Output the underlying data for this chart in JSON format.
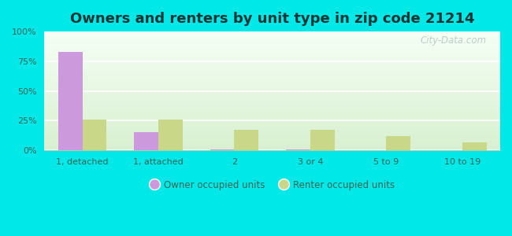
{
  "title": "Owners and renters by unit type in zip code 21214",
  "categories": [
    "1, detached",
    "1, attached",
    "2",
    "3 or 4",
    "5 to 9",
    "10 to 19"
  ],
  "owner_values": [
    83,
    15,
    1,
    1,
    0,
    0
  ],
  "renter_values": [
    26,
    26,
    17,
    17,
    12,
    7
  ],
  "owner_color": "#cc99dd",
  "renter_color": "#c8d888",
  "background_color": "#00e8e8",
  "title_fontsize": 13,
  "title_color": "#1a3333",
  "legend_owner": "Owner occupied units",
  "legend_renter": "Renter occupied units",
  "ylim": [
    0,
    100
  ],
  "yticks": [
    0,
    25,
    50,
    75,
    100
  ],
  "ytick_labels": [
    "0%",
    "25%",
    "50%",
    "75%",
    "100%"
  ],
  "watermark": "City-Data.com",
  "tick_label_color": "#336655",
  "bar_width": 0.32
}
